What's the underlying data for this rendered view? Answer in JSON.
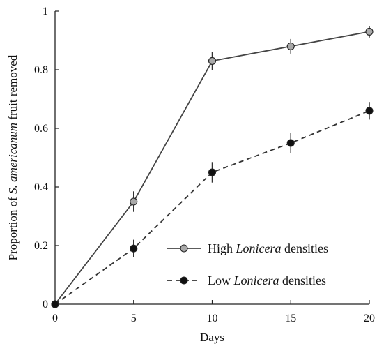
{
  "chart_data": {
    "type": "line",
    "x": [
      0,
      5,
      10,
      15,
      20
    ],
    "xlabel": "Days",
    "ylabel": {
      "pre": "Proportion of ",
      "italic": "S. americanum",
      "post": " fruit removed"
    },
    "xlim": [
      0,
      20
    ],
    "ylim": [
      0,
      1
    ],
    "xticks": [
      0,
      5,
      10,
      15,
      20
    ],
    "yticks": [
      0,
      0.2,
      0.4,
      0.6,
      0.8,
      1
    ],
    "ytick_labels": [
      "0",
      "0.2",
      "0.4",
      "0.6",
      "0.8",
      "1"
    ],
    "grid": false,
    "legend_position": "bottom-right",
    "series": [
      {
        "legend": {
          "pre": "High ",
          "italic": "Lonicera",
          "post": " densities"
        },
        "values": [
          0,
          0.35,
          0.83,
          0.88,
          0.93
        ],
        "error": [
          0,
          0.035,
          0.03,
          0.025,
          0.02
        ],
        "line_style": "solid",
        "marker_fill": "#a9a9a9",
        "line_color": "#444444"
      },
      {
        "legend": {
          "pre": "Low ",
          "italic": "Lonicera",
          "post": " densities"
        },
        "values": [
          0,
          0.19,
          0.45,
          0.55,
          0.66
        ],
        "error": [
          0,
          0.03,
          0.035,
          0.035,
          0.03
        ],
        "line_style": "dashed",
        "marker_fill": "#111111",
        "line_color": "#333333"
      }
    ]
  }
}
